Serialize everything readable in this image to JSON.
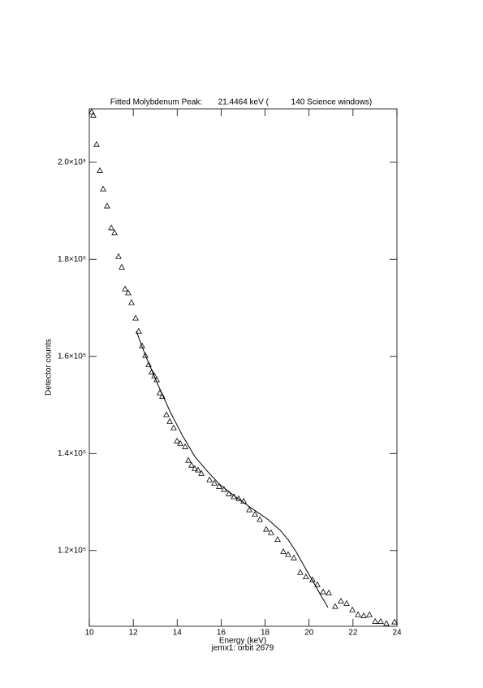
{
  "chart_data": {
    "type": "scatter",
    "title": "Fitted Molybdenum Peak:       21.4464 keV (          140 Science windows)",
    "x_label": "Energy (keV)",
    "subtitle": "jemx1: orbit 2679",
    "y_label": "Detector counts",
    "xlim": [
      10,
      24
    ],
    "xticks": [
      10,
      12,
      14,
      16,
      18,
      20,
      22,
      24
    ],
    "ylim": [
      104400,
      211000
    ],
    "yticks": [
      {
        "value": 120000,
        "label": "1.2×10⁵"
      },
      {
        "value": 140000,
        "label": "1.4×10⁵"
      },
      {
        "value": 160000,
        "label": "1.6×10⁵"
      },
      {
        "value": 180000,
        "label": "1.8×10⁵"
      },
      {
        "value": 200000,
        "label": "2.0×10⁵"
      }
    ],
    "color": "#000000",
    "series": [
      {
        "marker": "triangle",
        "x": [
          10.11,
          10.18,
          10.33,
          10.48,
          10.63,
          10.81,
          11.0,
          11.15,
          11.33,
          11.48,
          11.63,
          11.77,
          11.92,
          12.11,
          12.25,
          12.4,
          12.55,
          12.7,
          12.84,
          12.96,
          13.07,
          13.21,
          13.32,
          13.51,
          13.66,
          13.84,
          13.99,
          14.14,
          14.36,
          14.51,
          14.65,
          14.8,
          14.95,
          15.1,
          15.47,
          15.69,
          15.91,
          16.13,
          16.35,
          16.58,
          16.8,
          17.02,
          17.28,
          17.54,
          17.76,
          18.05,
          18.27,
          18.57,
          18.83,
          19.05,
          19.31,
          19.6,
          19.86,
          20.16,
          20.38,
          20.64,
          20.9,
          21.19,
          21.45,
          21.71,
          21.97,
          22.23,
          22.49,
          22.75,
          23.01,
          23.26,
          23.52,
          23.89
        ],
        "values": [
          210400,
          209700,
          203700,
          198300,
          194500,
          191000,
          186500,
          185500,
          180600,
          178400,
          173900,
          173100,
          171100,
          167900,
          165200,
          162200,
          160200,
          158300,
          156800,
          156000,
          155200,
          152500,
          151800,
          148000,
          146600,
          145300,
          142600,
          142100,
          141400,
          138600,
          137600,
          136900,
          136600,
          135900,
          134600,
          133900,
          133200,
          132600,
          131700,
          131100,
          130700,
          130200,
          128400,
          127500,
          126400,
          124400,
          123700,
          122300,
          119800,
          119200,
          118500,
          115500,
          114600,
          114000,
          113000,
          111500,
          111300,
          108500,
          109600,
          109100,
          107800,
          106800,
          106600,
          106800,
          105400,
          105400,
          105000,
          105300
        ]
      },
      {
        "marker": "line",
        "x": [
          12.14,
          12.59,
          13.14,
          13.69,
          14.25,
          14.8,
          15.36,
          15.91,
          16.65,
          17.39,
          18.13,
          18.68,
          19.05,
          19.42,
          19.79,
          20.16,
          20.53,
          20.86
        ],
        "values": [
          165200,
          159800,
          154000,
          148500,
          143600,
          139400,
          136400,
          133700,
          131100,
          128700,
          126400,
          124200,
          122200,
          119700,
          116700,
          113800,
          110800,
          108300
        ]
      }
    ]
  }
}
